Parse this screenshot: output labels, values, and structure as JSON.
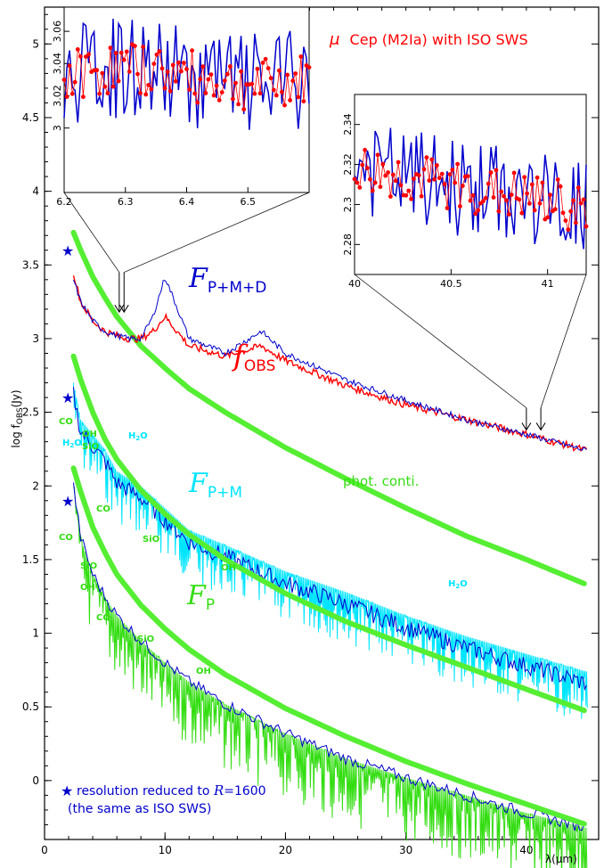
{
  "chart_data": {
    "type": "line",
    "title": "μ Cep (M2Ia) with ISO SWS",
    "title_mu": "μ",
    "title_rest": "Cep (M2Ia) with ISO SWS",
    "xlabel": "λ(μm)",
    "ylabel": "log f_OBS(Jy)",
    "ylabel_main": "log f",
    "ylabel_sub": "OBS",
    "ylabel_unit": "(Jy)",
    "xlim": [
      0,
      46
    ],
    "ylim": [
      -0.4,
      5.25
    ],
    "x_ticks": [
      "0",
      "10",
      "20",
      "30",
      "40"
    ],
    "x_tick_values": [
      0,
      10,
      20,
      30,
      40
    ],
    "y_ticks": [
      "0",
      "0.5",
      "1",
      "1.5",
      "2",
      "2.5",
      "3",
      "3.5",
      "4",
      "4.5",
      "5"
    ],
    "y_tick_values": [
      0,
      0.5,
      1,
      1.5,
      2,
      2.5,
      3,
      3.5,
      4,
      4.5,
      5
    ],
    "series": [
      {
        "name": "f_OBS",
        "label_main": "f",
        "label_sub": "OBS",
        "color": "#ff0000",
        "x": [
          2.4,
          3,
          4,
          5,
          6,
          7,
          8,
          9,
          10,
          12,
          15,
          18,
          20,
          25,
          30,
          35,
          40,
          45
        ],
        "y": [
          3.45,
          3.25,
          3.12,
          3.05,
          3.02,
          3.0,
          3.0,
          3.05,
          3.15,
          2.95,
          2.88,
          2.95,
          2.85,
          2.68,
          2.55,
          2.45,
          2.35,
          2.24
        ]
      },
      {
        "name": "F_P+M+D",
        "label_main": "F",
        "label_sub": "P+M+D",
        "color": "#0000cc",
        "x": [
          2.4,
          3,
          4,
          5,
          6,
          7,
          8,
          9,
          10,
          12,
          15,
          18,
          20,
          25,
          30,
          35,
          40,
          45
        ],
        "y": [
          3.4,
          3.25,
          3.12,
          3.05,
          3.02,
          3.0,
          3.0,
          3.15,
          3.42,
          3.0,
          2.9,
          3.05,
          2.9,
          2.72,
          2.58,
          2.45,
          2.35,
          2.24
        ]
      },
      {
        "name": "F_P+M",
        "label_main": "F",
        "label_sub": "P+M",
        "color": "#00e5ff",
        "x": [
          2.4,
          3,
          4,
          5,
          6,
          8,
          10,
          12,
          15,
          20,
          25,
          30,
          35,
          40,
          45
        ],
        "y": [
          2.7,
          2.45,
          2.35,
          2.25,
          2.1,
          2.0,
          1.85,
          1.7,
          1.6,
          1.42,
          1.28,
          1.12,
          0.98,
          0.86,
          0.74
        ]
      },
      {
        "name": "F_P",
        "label_main": "F",
        "label_sub": "P",
        "color": "#33dd11",
        "x": [
          2.4,
          3,
          4,
          5,
          6,
          8,
          10,
          12,
          15,
          20,
          25,
          30,
          35,
          40,
          45
        ],
        "y": [
          2.0,
          1.65,
          1.4,
          1.25,
          1.12,
          0.95,
          0.8,
          0.67,
          0.52,
          0.32,
          0.15,
          0.02,
          -0.1,
          -0.22,
          -0.32
        ]
      },
      {
        "name": "phot. conti.",
        "color": "#55ee33",
        "x": [
          2.4,
          3,
          4,
          5,
          6,
          8,
          10,
          12,
          15,
          20,
          25,
          30,
          35,
          40,
          45
        ],
        "y": [
          3.72,
          3.6,
          3.42,
          3.28,
          3.15,
          2.95,
          2.8,
          2.66,
          2.5,
          2.26,
          2.05,
          1.85,
          1.66,
          1.5,
          1.33
        ]
      },
      {
        "name": "phot. conti. (P+M)",
        "color": "#55ee33",
        "x": [
          2.4,
          3,
          4,
          5,
          6,
          8,
          10,
          12,
          15,
          20,
          25,
          30,
          35,
          40,
          45
        ],
        "y": [
          2.88,
          2.72,
          2.5,
          2.32,
          2.18,
          1.97,
          1.81,
          1.67,
          1.5,
          1.27,
          1.08,
          0.92,
          0.77,
          0.62,
          0.47
        ]
      },
      {
        "name": "phot. conti. (P)",
        "color": "#55ee33",
        "x": [
          2.4,
          3,
          4,
          5,
          6,
          8,
          10,
          12,
          15,
          20,
          25,
          30,
          35,
          40,
          45
        ],
        "y": [
          2.12,
          1.96,
          1.72,
          1.55,
          1.4,
          1.19,
          1.03,
          0.89,
          0.72,
          0.49,
          0.3,
          0.13,
          -0.02,
          -0.16,
          -0.3
        ]
      }
    ],
    "star_values": [
      3.6,
      2.6,
      1.9
    ],
    "annotations": {
      "phot_conti": "phot. conti.",
      "co1": "CO",
      "h2o1": "H",
      "h2o1_sub": "2",
      "h2o1_end": "O",
      "oh1": "OH",
      "sio1": "SiO",
      "h2o2": "H",
      "h2o2_sub": "2",
      "h2o2_end": "O",
      "co2": "CO",
      "sio2": "SiO",
      "oh2": "OH",
      "h2o3": "H",
      "h2o3_sub": "2",
      "h2o3_end": "O",
      "co3": "CO",
      "sio3": "SiO",
      "oh3": "OH",
      "co4": "CO",
      "sio4": "SiO",
      "oh4": "OH",
      "note1": "resolution reduced to ",
      "note_r": "R",
      "note_eq": "=1600",
      "note2": "(the same as ISO SWS)"
    },
    "inset1": {
      "xlim": [
        6.2,
        6.6
      ],
      "ylim": [
        2.96,
        3.075
      ],
      "x_ticks": [
        "6.2",
        "6.3",
        "6.4",
        "6.5"
      ],
      "x_tick_values": [
        6.2,
        6.3,
        6.4,
        6.5
      ],
      "y_ticks": [
        "3",
        "3.02",
        "3.04",
        "3.06"
      ],
      "y_tick_values": [
        3,
        3.02,
        3.04,
        3.06
      ]
    },
    "inset2": {
      "xlim": [
        40,
        41.2
      ],
      "ylim": [
        2.265,
        2.355
      ],
      "x_ticks": [
        "40",
        "40.5",
        "41"
      ],
      "x_tick_values": [
        40,
        40.5,
        41
      ],
      "y_ticks": [
        "2.28",
        "2.3",
        "2.32",
        "2.34"
      ],
      "y_tick_values": [
        2.28,
        2.3,
        2.32,
        2.34
      ]
    }
  },
  "colors": {
    "obs": "#ff0000",
    "pmd": "#0000cc",
    "pm": "#00e5ff",
    "p": "#33dd11",
    "conti": "#55ee33",
    "note": "#0000cc",
    "title": "#ff0000"
  }
}
